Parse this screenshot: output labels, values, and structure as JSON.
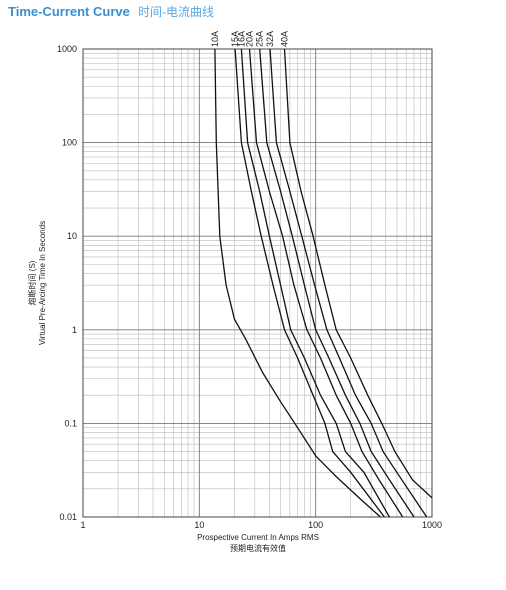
{
  "chart_data": {
    "type": "line",
    "title": "Time-Current Curve",
    "subtitle": "时间-电流曲线",
    "x_label": "Prospective Current In Amps RMS",
    "x_label_2": "预期电流有效值",
    "y_label": "Virtual Pre-Arcing Time In Seconds",
    "y_label_2": "熔断时间 (S)",
    "log_x": true,
    "log_y": true,
    "grid": true,
    "minor_grid": true,
    "xlim": [
      1,
      1000
    ],
    "ylim": [
      0.01,
      1000
    ],
    "xticks": [
      1,
      10,
      100,
      1000
    ],
    "yticks": [
      0.01,
      0.1,
      1,
      10,
      100,
      1000
    ],
    "series": [
      {
        "name": "10A",
        "color": "#111111",
        "x": [
          13.6,
          14,
          15,
          17,
          19,
          20,
          25,
          35,
          50,
          70,
          100,
          150,
          250,
          360
        ],
        "values": [
          1000,
          100,
          10,
          3,
          1.7,
          1.3,
          0.8,
          0.35,
          0.17,
          0.09,
          0.045,
          0.027,
          0.015,
          0.01
        ]
      },
      {
        "name": "15A",
        "color": "#111111",
        "x": [
          20.3,
          23,
          28,
          34,
          43,
          54,
          70,
          95,
          120,
          140,
          200,
          390
        ],
        "values": [
          1000,
          100,
          30,
          10,
          3,
          1,
          0.5,
          0.2,
          0.1,
          0.05,
          0.03,
          0.01
        ]
      },
      {
        "name": "16A",
        "color": "#111111",
        "x": [
          23,
          26,
          33,
          40,
          50,
          61,
          80,
          110,
          150,
          180,
          260,
          430
        ],
        "values": [
          1000,
          100,
          30,
          10,
          3,
          1,
          0.5,
          0.2,
          0.1,
          0.05,
          0.03,
          0.01
        ]
      },
      {
        "name": "20A",
        "color": "#111111",
        "x": [
          27,
          31,
          40,
          52,
          65,
          84,
          110,
          150,
          200,
          250,
          350,
          560
        ],
        "values": [
          1000,
          100,
          30,
          10,
          3,
          1,
          0.5,
          0.2,
          0.1,
          0.05,
          0.025,
          0.01
        ]
      },
      {
        "name": "25A",
        "color": "#111111",
        "x": [
          33,
          38,
          50,
          63,
          80,
          100,
          130,
          180,
          240,
          300,
          430,
          700
        ],
        "values": [
          1000,
          100,
          30,
          10,
          3,
          1,
          0.5,
          0.2,
          0.1,
          0.05,
          0.025,
          0.01
        ]
      },
      {
        "name": "32A",
        "color": "#111111",
        "x": [
          40.5,
          46,
          60,
          76,
          98,
          125,
          160,
          220,
          300,
          380,
          550,
          900
        ],
        "values": [
          1000,
          100,
          30,
          10,
          3,
          1,
          0.5,
          0.2,
          0.1,
          0.05,
          0.025,
          0.01
        ]
      },
      {
        "name": "40A",
        "color": "#111111",
        "x": [
          54,
          60,
          75,
          95,
          120,
          150,
          200,
          280,
          370,
          480,
          680,
          1000
        ],
        "values": [
          1000,
          100,
          30,
          10,
          3,
          1,
          0.5,
          0.2,
          0.1,
          0.05,
          0.025,
          0.016
        ]
      }
    ]
  }
}
